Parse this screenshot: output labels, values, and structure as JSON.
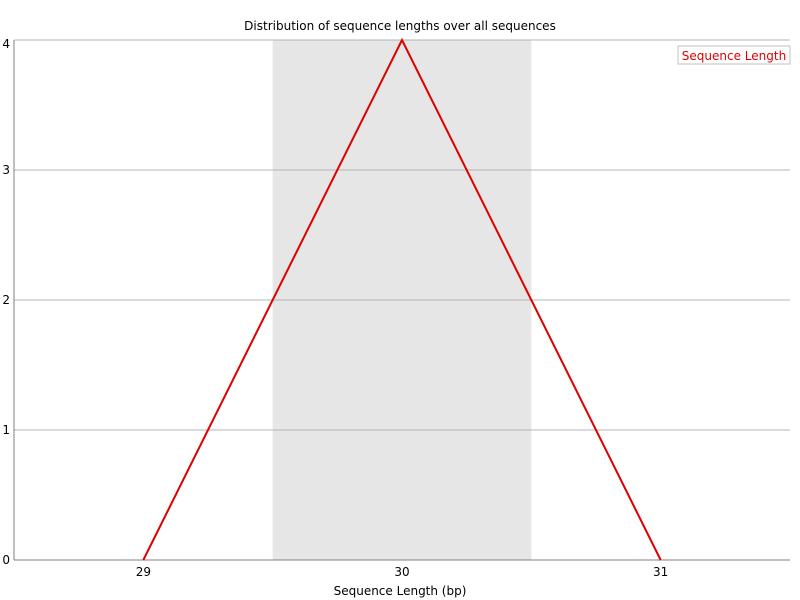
{
  "chart_data": {
    "type": "line",
    "title": "Distribution of sequence lengths over all sequences",
    "xlabel": "Sequence Length (bp)",
    "ylabel": "",
    "categories": [
      "29",
      "30",
      "31"
    ],
    "xlim": [
      28.5,
      31.5
    ],
    "ylim": [
      0,
      4
    ],
    "yticks": [
      0,
      1,
      2,
      3,
      4
    ],
    "grid": true,
    "legend_position": "top-right",
    "highlight_band": {
      "category": "30",
      "color": "#e6e6e6"
    },
    "series": [
      {
        "name": "Sequence Length",
        "color": "#dd0000",
        "x": [
          29,
          30,
          31
        ],
        "values": [
          0,
          4,
          0
        ]
      }
    ]
  }
}
